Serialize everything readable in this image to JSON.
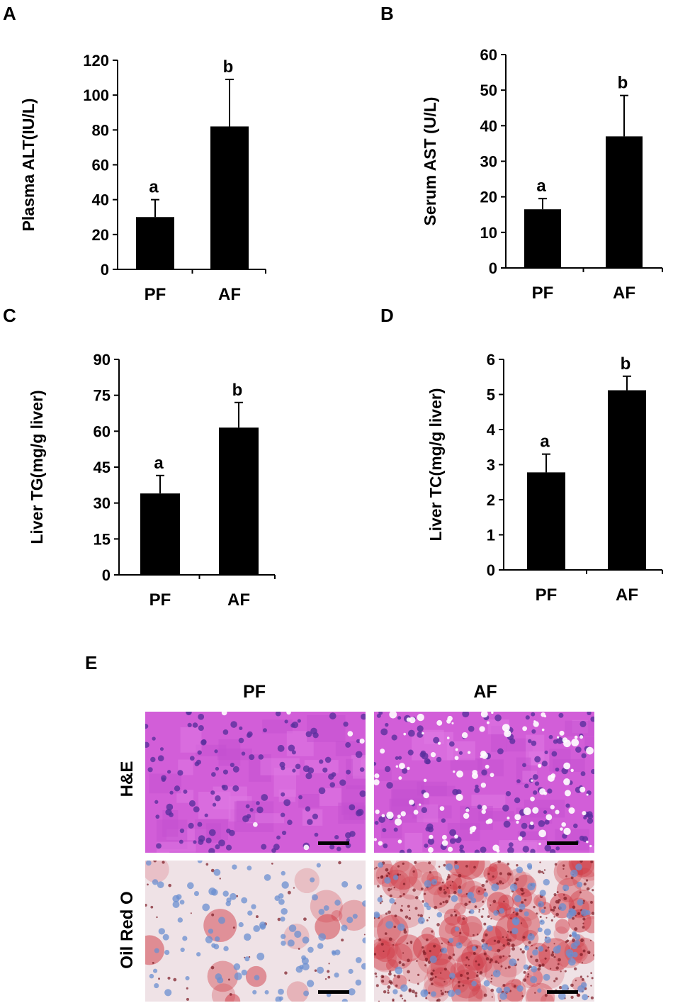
{
  "panels": {
    "A": "A",
    "B": "B",
    "C": "C",
    "D": "D",
    "E": "E"
  },
  "colors": {
    "bar": "#000000",
    "he_pink": "#d25ed8",
    "he_nuclei": "#5a2f9e",
    "oil_bg": "#efe2e6",
    "oil_red": "#d03a45",
    "oil_nuclei": "#6b8fd0"
  },
  "chart_data": [
    {
      "panel": "A",
      "type": "bar",
      "categories": [
        "PF",
        "AF"
      ],
      "values": [
        30,
        82
      ],
      "errors": [
        10,
        27
      ],
      "significance": [
        "a",
        "b"
      ],
      "ylabel": "Plasma ALT(IU/L)",
      "xlabel": "",
      "ylim": [
        0,
        120
      ],
      "yticks": [
        0,
        20,
        40,
        60,
        80,
        100,
        120
      ],
      "grid": false
    },
    {
      "panel": "B",
      "type": "bar",
      "categories": [
        "PF",
        "AF"
      ],
      "values": [
        16.5,
        37
      ],
      "errors": [
        3,
        11.5
      ],
      "significance": [
        "a",
        "b"
      ],
      "ylabel": "Serum AST (U/L)",
      "xlabel": "",
      "ylim": [
        0,
        60
      ],
      "yticks": [
        0,
        10,
        20,
        30,
        40,
        50,
        60
      ],
      "grid": false
    },
    {
      "panel": "C",
      "type": "bar",
      "categories": [
        "PF",
        "AF"
      ],
      "values": [
        34,
        61.5
      ],
      "errors": [
        7.5,
        10.5
      ],
      "significance": [
        "a",
        "b"
      ],
      "ylabel": "Liver TG(mg/g liver)",
      "xlabel": "",
      "ylim": [
        0,
        90
      ],
      "yticks": [
        0,
        15,
        30,
        45,
        60,
        75,
        90
      ],
      "grid": false
    },
    {
      "panel": "D",
      "type": "bar",
      "categories": [
        "PF",
        "AF"
      ],
      "values": [
        2.78,
        5.12
      ],
      "errors": [
        0.52,
        0.4
      ],
      "significance": [
        "a",
        "b"
      ],
      "ylabel": "Liver TC(mg/g liver)",
      "xlabel": "",
      "ylim": [
        0,
        6
      ],
      "yticks": [
        0,
        1,
        2,
        3,
        4,
        5,
        6
      ],
      "grid": false
    }
  ],
  "histology": {
    "columns": [
      "PF",
      "AF"
    ],
    "rows": [
      "H&E",
      "Oil Red O"
    ]
  }
}
